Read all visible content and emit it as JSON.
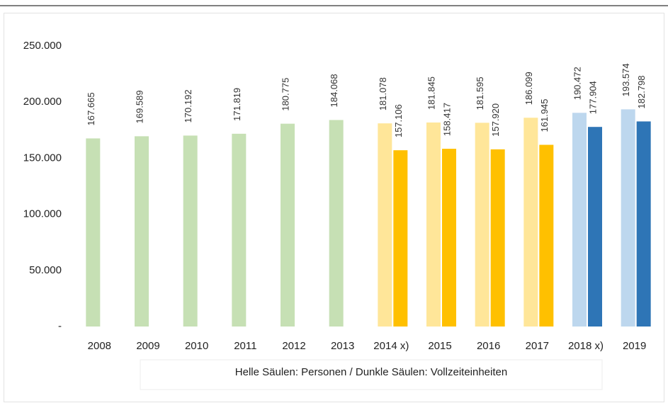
{
  "chart_data": {
    "type": "bar",
    "categories": [
      "2008",
      "2009",
      "2010",
      "2011",
      "2012",
      "2013",
      "2014 x)",
      "2015",
      "2016",
      "2017",
      "2018 x)",
      "2019"
    ],
    "series": [
      {
        "colors": [
          "#c6e0b4",
          "#c6e0b4",
          "#c6e0b4",
          "#c6e0b4",
          "#c6e0b4",
          "#c6e0b4",
          "#ffe699",
          "#ffe699",
          "#ffe699",
          "#ffe699",
          "#bdd7ee",
          "#bdd7ee"
        ],
        "values": [
          167665,
          169589,
          170192,
          171819,
          180775,
          184068,
          181078,
          181845,
          181595,
          186099,
          190472,
          193574
        ],
        "value_labels": [
          "167.665",
          "169.589",
          "170.192",
          "171.819",
          "180.775",
          "184.068",
          "181.078",
          "181.845",
          "181.595",
          "186.099",
          "190.472",
          "193.574"
        ]
      },
      {
        "colors": [
          null,
          null,
          null,
          null,
          null,
          null,
          "#ffc000",
          "#ffc000",
          "#ffc000",
          "#ffc000",
          "#2e75b6",
          "#2e75b6"
        ],
        "values": [
          null,
          null,
          null,
          null,
          null,
          null,
          157106,
          158417,
          157920,
          161945,
          177904,
          182798
        ],
        "value_labels": [
          null,
          null,
          null,
          null,
          null,
          null,
          "157.106",
          "158.417",
          "157.920",
          "161.945",
          "177.904",
          "182.798"
        ]
      }
    ],
    "ylim": [
      0,
      250000
    ],
    "yticks": [
      {
        "value": 0,
        "label": "-"
      },
      {
        "value": 50000,
        "label": "50.000"
      },
      {
        "value": 100000,
        "label": "100.000"
      },
      {
        "value": 150000,
        "label": "150.000"
      },
      {
        "value": 200000,
        "label": "200.000"
      },
      {
        "value": 250000,
        "label": "250.000"
      }
    ],
    "grid": false,
    "legend_note": "Helle Säulen: Personen / Dunkle Säulen: Vollzeiteinheiten"
  }
}
